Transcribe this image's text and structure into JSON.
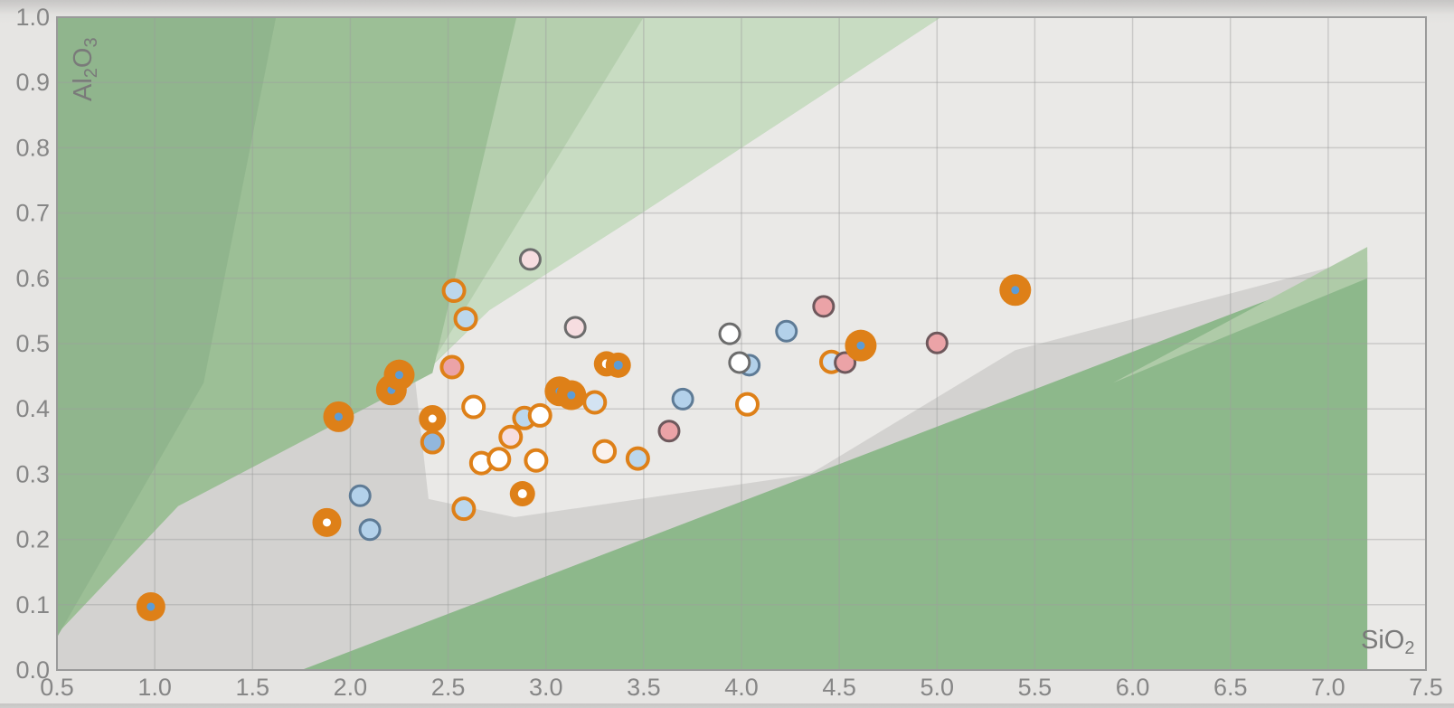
{
  "page": {
    "background": "#e6e5e3",
    "plot_background": "#eae9e7",
    "grid_color": "#9e9e9e",
    "border_color": "#9a9a9a",
    "tick_color": "#868686",
    "axis_title_color": "#7a7a7a"
  },
  "chart_data": {
    "type": "scatter",
    "title": "",
    "xlabel": "SiO2",
    "ylabel": "Al2O3",
    "xlabel_parts": [
      [
        "SiO",
        false
      ],
      [
        "2",
        true
      ]
    ],
    "ylabel_parts": [
      [
        "Al",
        false
      ],
      [
        "2",
        true
      ],
      [
        "O",
        false
      ],
      [
        "3",
        true
      ]
    ],
    "xlim": [
      0.5,
      7.5
    ],
    "ylim": [
      0.0,
      1.0
    ],
    "grid": true,
    "legend": "none",
    "xticks": [
      "0.5",
      "1.0",
      "1.5",
      "2.0",
      "2.5",
      "3.0",
      "3.5",
      "4.0",
      "4.5",
      "5.0",
      "5.5",
      "6.0",
      "6.5",
      "7.0",
      "7.5"
    ],
    "yticks": [
      "0.0",
      "0.1",
      "0.2",
      "0.3",
      "0.4",
      "0.5",
      "0.6",
      "0.7",
      "0.8",
      "0.9",
      "1.0"
    ],
    "palette": {
      "orange": "#de8018",
      "dot_blue": "#5c9cd6",
      "white": "#ffffff",
      "light_blue": "#bcd7ec",
      "very_light_blue": "#d3e3f2",
      "medium_blue": "#92b7dc",
      "gray_blue_fill": "#b3d1ea",
      "pink": "#eba3a7",
      "pale_pink": "#f6dde0",
      "pale_warm": "#faf2ed",
      "ring_gray": "#6c6c6c",
      "ring_slate": "#5e7b96",
      "ring_plum": "#6e585c",
      "field_green_dark": "#90b58d",
      "field_green_medium": "#9cbf96",
      "field_green_light": "#b5cfae",
      "field_green_lightest": "#c8dcc2",
      "field_green_bottom": "#8db88b",
      "field_green_bottom_light": "#afcba8",
      "field_gray_fan": "#d3d2d0"
    },
    "regions": [
      {
        "name": "gray-fan-field",
        "color_key": "field_gray_fan",
        "points": [
          [
            0.5,
            0.0
          ],
          [
            0.5,
            0.055
          ],
          [
            1.12,
            0.251
          ],
          [
            2.33,
            0.448
          ],
          [
            2.4,
            0.262
          ],
          [
            2.84,
            0.234
          ],
          [
            4.35,
            0.3
          ],
          [
            5.4,
            0.49
          ],
          [
            7.2,
            0.632
          ],
          [
            7.2,
            0.0
          ]
        ]
      },
      {
        "name": "green-bottom-right-field",
        "color_key": "field_green_bottom",
        "points": [
          [
            1.75,
            0.0
          ],
          [
            7.2,
            0.625
          ],
          [
            7.2,
            0.0
          ]
        ]
      },
      {
        "name": "green-bottom-right-light-band",
        "color_key": "field_green_bottom_light",
        "points": [
          [
            5.9,
            0.44
          ],
          [
            7.2,
            0.648
          ],
          [
            7.2,
            0.6
          ]
        ]
      },
      {
        "name": "green-upper-light-field",
        "color_key": "field_green_light",
        "points": [
          [
            1.62,
            1.0
          ],
          [
            5.02,
            1.0
          ],
          [
            3.46,
            0.694
          ],
          [
            2.71,
            0.551
          ],
          [
            2.38,
            0.455
          ]
        ]
      },
      {
        "name": "green-upper-lightest-band",
        "color_key": "field_green_lightest",
        "points": [
          [
            3.5,
            1.0
          ],
          [
            5.02,
            1.0
          ],
          [
            3.46,
            0.694
          ],
          [
            2.71,
            0.551
          ],
          [
            2.4,
            0.462
          ]
        ]
      },
      {
        "name": "green-main-field",
        "color_key": "field_green_medium",
        "points": [
          [
            0.5,
            1.0
          ],
          [
            2.85,
            1.0
          ],
          [
            2.42,
            0.455
          ],
          [
            1.12,
            0.251
          ],
          [
            0.5,
            0.055
          ]
        ]
      },
      {
        "name": "green-left-band",
        "color_key": "field_green_dark",
        "points": [
          [
            0.5,
            1.0
          ],
          [
            1.62,
            1.0
          ],
          [
            1.25,
            0.44
          ],
          [
            0.5,
            0.05
          ]
        ]
      }
    ],
    "marker_styles": {
      "ring_gray": {
        "r": 11,
        "ring_width": 3
      },
      "ring_orange": {
        "r": 11.5,
        "ring_width": 4
      },
      "donut": {
        "r": 14,
        "dot_r": 5
      },
      "big_orange": {
        "r": 17,
        "dot_r": 4.5
      }
    },
    "points": [
      {
        "x": 2.05,
        "y": 0.267,
        "style": "ring_gray",
        "fill": "gray_blue_fill",
        "ring": "ring_slate"
      },
      {
        "x": 2.1,
        "y": 0.215,
        "style": "ring_gray",
        "fill": "gray_blue_fill",
        "ring": "ring_slate"
      },
      {
        "x": 2.92,
        "y": 0.629,
        "style": "ring_gray",
        "fill": "pale_pink",
        "ring": "ring_gray"
      },
      {
        "x": 3.15,
        "y": 0.525,
        "style": "ring_gray",
        "fill": "pale_pink",
        "ring": "ring_gray"
      },
      {
        "x": 3.63,
        "y": 0.366,
        "style": "ring_gray",
        "fill": "pink",
        "ring": "ring_plum"
      },
      {
        "x": 3.7,
        "y": 0.415,
        "style": "ring_gray",
        "fill": "gray_blue_fill",
        "ring": "ring_slate"
      },
      {
        "x": 3.94,
        "y": 0.515,
        "style": "ring_gray",
        "fill": "white",
        "ring": "ring_gray"
      },
      {
        "x": 4.04,
        "y": 0.467,
        "style": "ring_gray",
        "fill": "gray_blue_fill",
        "ring": "ring_slate"
      },
      {
        "x": 3.99,
        "y": 0.471,
        "style": "ring_gray",
        "fill": "white",
        "ring": "ring_gray"
      },
      {
        "x": 4.23,
        "y": 0.519,
        "style": "ring_gray",
        "fill": "gray_blue_fill",
        "ring": "ring_slate"
      },
      {
        "x": 4.42,
        "y": 0.557,
        "style": "ring_gray",
        "fill": "pink",
        "ring": "ring_plum"
      },
      {
        "x": 5.0,
        "y": 0.501,
        "style": "ring_gray",
        "fill": "pink",
        "ring": "ring_plum"
      },
      {
        "x": 2.53,
        "y": 0.581,
        "style": "ring_orange",
        "fill": "light_blue"
      },
      {
        "x": 2.59,
        "y": 0.538,
        "style": "ring_orange",
        "fill": "light_blue"
      },
      {
        "x": 2.52,
        "y": 0.464,
        "style": "ring_orange",
        "fill": "pink"
      },
      {
        "x": 2.63,
        "y": 0.403,
        "style": "ring_orange",
        "fill": "white"
      },
      {
        "x": 2.89,
        "y": 0.386,
        "style": "ring_orange",
        "fill": "light_blue"
      },
      {
        "x": 2.97,
        "y": 0.39,
        "style": "ring_orange",
        "fill": "white"
      },
      {
        "x": 2.82,
        "y": 0.357,
        "style": "ring_orange",
        "fill": "pale_pink"
      },
      {
        "x": 2.67,
        "y": 0.317,
        "style": "ring_orange",
        "fill": "white"
      },
      {
        "x": 2.76,
        "y": 0.323,
        "style": "ring_orange",
        "fill": "white"
      },
      {
        "x": 2.95,
        "y": 0.321,
        "style": "ring_orange",
        "fill": "white"
      },
      {
        "x": 3.3,
        "y": 0.335,
        "style": "ring_orange",
        "fill": "pale_warm"
      },
      {
        "x": 3.47,
        "y": 0.324,
        "style": "ring_orange",
        "fill": "light_blue"
      },
      {
        "x": 2.58,
        "y": 0.247,
        "style": "ring_orange",
        "fill": "light_blue"
      },
      {
        "x": 3.25,
        "y": 0.41,
        "style": "ring_orange",
        "fill": "very_light_blue"
      },
      {
        "x": 4.03,
        "y": 0.407,
        "style": "ring_orange",
        "fill": "white"
      },
      {
        "x": 2.42,
        "y": 0.349,
        "style": "ring_orange",
        "fill": "medium_blue"
      },
      {
        "x": 4.46,
        "y": 0.472,
        "style": "ring_orange",
        "fill": "very_light_blue"
      },
      {
        "x": 4.53,
        "y": 0.471,
        "style": "ring_gray",
        "fill": "pink",
        "ring": "ring_plum"
      },
      {
        "x": 2.88,
        "y": 0.27,
        "style": "donut",
        "dot": "white"
      },
      {
        "x": 3.31,
        "y": 0.469,
        "style": "donut",
        "dot": "white"
      },
      {
        "x": 3.37,
        "y": 0.467,
        "style": "donut",
        "dot": "dot_blue"
      },
      {
        "x": 0.98,
        "y": 0.097,
        "style": "big_orange",
        "dot": "dot_blue",
        "r": 16
      },
      {
        "x": 1.88,
        "y": 0.226,
        "style": "big_orange",
        "dot": "white",
        "r": 16
      },
      {
        "x": 1.94,
        "y": 0.388,
        "style": "big_orange",
        "dot": "dot_blue"
      },
      {
        "x": 2.21,
        "y": 0.429,
        "style": "big_orange",
        "dot": "dot_blue"
      },
      {
        "x": 2.25,
        "y": 0.452,
        "style": "big_orange",
        "dot": "dot_blue"
      },
      {
        "x": 2.42,
        "y": 0.385,
        "style": "big_orange",
        "dot": "white",
        "r": 15
      },
      {
        "x": 3.07,
        "y": 0.427,
        "style": "big_orange",
        "dot": "dot_blue",
        "r": 16.5
      },
      {
        "x": 3.13,
        "y": 0.421,
        "style": "big_orange",
        "dot": "dot_blue",
        "r": 16.5
      },
      {
        "x": 4.61,
        "y": 0.497,
        "style": "big_orange",
        "dot": "dot_blue",
        "r": 17.5
      },
      {
        "x": 5.4,
        "y": 0.582,
        "style": "big_orange",
        "dot": "dot_blue",
        "r": 17.5
      }
    ]
  }
}
